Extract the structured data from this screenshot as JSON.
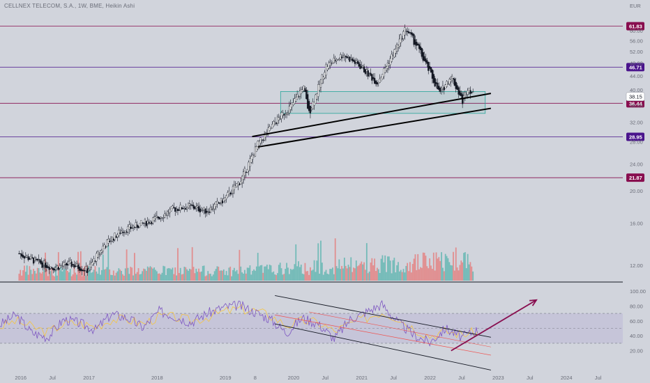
{
  "header": {
    "ticker": "CELLNEX TELECOM, S.A., 1W, BME, Heikin Ashi",
    "currency": "EUR"
  },
  "chart_data": [
    {
      "type": "candlestick",
      "title": "CELLNEX TELECOM, S.A., 1W, BME, Heikin Ashi",
      "y_scale": "log",
      "ylim": [
        11,
        66
      ],
      "y_ticks": [
        12.0,
        16.0,
        20.0,
        24.0,
        28.0,
        32.0,
        36.0,
        40.0,
        44.0,
        48.0,
        52.0,
        56.0,
        60.0
      ],
      "x_ticks": [
        "2016",
        "Jul",
        "2017",
        "2018",
        "2019",
        "8",
        "2020",
        "Jul",
        "2021",
        "Jul",
        "2022",
        "Jul",
        "2023",
        "Jul",
        "2024",
        "Jul"
      ],
      "last_price": 38.15,
      "horizontal_levels": [
        {
          "value": 61.83,
          "label": "61.83",
          "color": "#880e4f"
        },
        {
          "value": 46.71,
          "label": "46.71",
          "color": "#4a148c"
        },
        {
          "value": 36.44,
          "label": "36.44",
          "color": "#880e4f"
        },
        {
          "value": 28.95,
          "label": "28.95",
          "color": "#4a148c"
        },
        {
          "value": 21.87,
          "label": "21.87",
          "color": "#880e4f"
        }
      ],
      "price_path": [
        [
          "2016-01",
          13.0
        ],
        [
          "2016-04",
          12.3
        ],
        [
          "2016-07",
          11.8
        ],
        [
          "2016-10",
          12.1
        ],
        [
          "2017-01",
          11.6
        ],
        [
          "2017-04",
          13.8
        ],
        [
          "2017-07",
          15.2
        ],
        [
          "2017-10",
          15.8
        ],
        [
          "2018-01",
          16.5
        ],
        [
          "2018-04",
          17.6
        ],
        [
          "2018-07",
          18.0
        ],
        [
          "2018-10",
          17.4
        ],
        [
          "2019-01",
          18.8
        ],
        [
          "2019-04",
          21.5
        ],
        [
          "2019-07",
          27.5
        ],
        [
          "2019-10",
          32.0
        ],
        [
          "2020-01",
          36.0
        ],
        [
          "2020-03",
          41.0
        ],
        [
          "2020-04",
          34.0
        ],
        [
          "2020-07",
          47.0
        ],
        [
          "2020-10",
          51.0
        ],
        [
          "2021-01",
          47.0
        ],
        [
          "2021-04",
          42.0
        ],
        [
          "2021-07",
          52.0
        ],
        [
          "2021-09",
          61.0
        ],
        [
          "2021-11",
          54.0
        ],
        [
          "2022-01",
          46.0
        ],
        [
          "2022-03",
          39.0
        ],
        [
          "2022-05",
          44.0
        ],
        [
          "2022-07",
          37.0
        ],
        [
          "2022-08",
          41.0
        ],
        [
          "2022-09",
          38.15
        ]
      ],
      "rectangle": {
        "from": "2019-11",
        "to": "2022-11",
        "top": 39.5,
        "bottom": 34.0
      },
      "trendlines": [
        {
          "from": [
            "2019-06",
            29.0
          ],
          "to": [
            "2022-12",
            39.0
          ]
        },
        {
          "from": [
            "2019-07",
            27.0
          ],
          "to": [
            "2022-12",
            35.2
          ]
        }
      ],
      "volume": "bars per week, green/red by candle direction, increasing from 2019"
    },
    {
      "type": "line",
      "title": "RSI",
      "ylim": [
        0,
        100
      ],
      "y_ticks": [
        20.0,
        40.0,
        60.0,
        80.0,
        100.0
      ],
      "bands": {
        "upper": 70,
        "middle": 50,
        "lower": 30
      },
      "series": [
        {
          "values": [
            55,
            68,
            44,
            38,
            62,
            57,
            48,
            69,
            64,
            51,
            73,
            66,
            58,
            70,
            78,
            81,
            72,
            62,
            44,
            64,
            56,
            36,
            62,
            72,
            82,
            58,
            41,
            31,
            50,
            38,
            48
          ]
        },
        {
          "values": [
            52,
            60,
            52,
            45,
            56,
            57,
            52,
            62,
            62,
            56,
            66,
            65,
            60,
            65,
            72,
            76,
            74,
            67,
            54,
            60,
            58,
            46,
            56,
            64,
            72,
            64,
            50,
            40,
            46,
            42,
            45
          ]
        }
      ],
      "channel_lines": "descending parallel channel from 2019-10 to 2022-12",
      "arrow": "upward arrow from 2022-05 toward 2023-07"
    }
  ]
}
